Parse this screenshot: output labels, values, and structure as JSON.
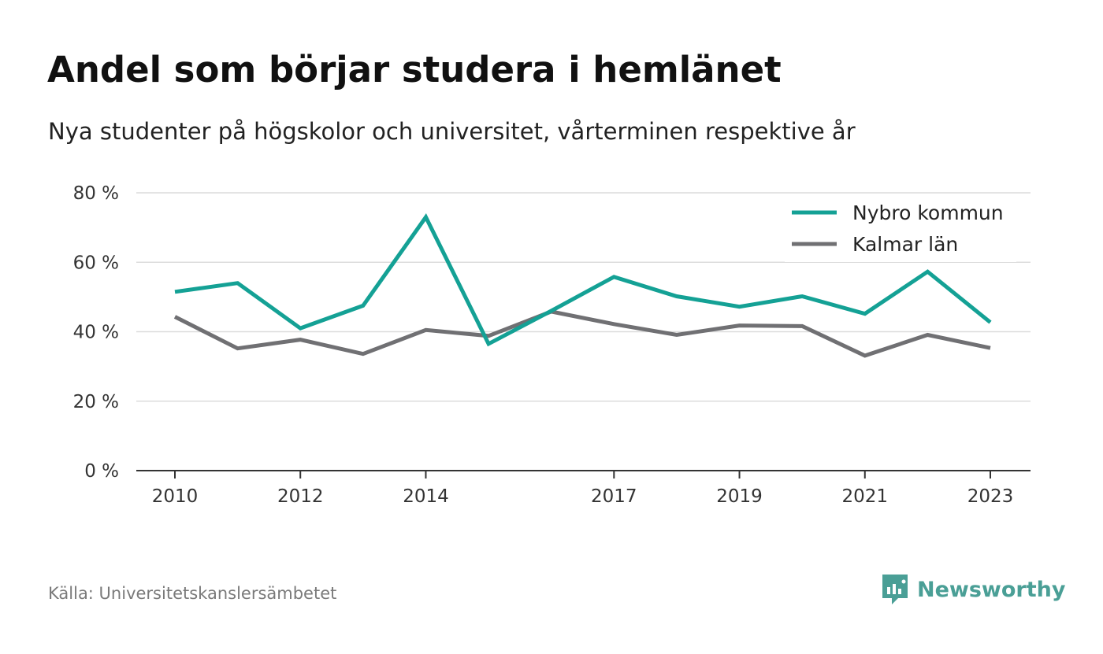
{
  "chart_data": {
    "type": "line",
    "title": "Andel som börjar studera i hemlänet",
    "subtitle": "Nya studenter på högskolor och universitet, vårterminen respektive år",
    "x": [
      2010,
      2011,
      2012,
      2013,
      2014,
      2015,
      2016,
      2017,
      2018,
      2019,
      2020,
      2021,
      2022,
      2023
    ],
    "x_tick_labels": [
      "2010",
      "2012",
      "2014",
      "2017",
      "2019",
      "2021",
      "2023"
    ],
    "x_ticks": [
      2010,
      2012,
      2014,
      2017,
      2019,
      2021,
      2023
    ],
    "y_ticks": [
      0,
      20,
      40,
      60,
      80
    ],
    "y_tick_labels": [
      "0 %",
      "20 %",
      "40 %",
      "60 %",
      "80 %"
    ],
    "ylim": [
      0,
      80
    ],
    "grid": true,
    "legend_position": "top-right",
    "series": [
      {
        "name": "Nybro kommun",
        "color": "#14a195",
        "values": [
          51.5,
          54,
          41,
          47.5,
          73,
          36.5,
          46,
          55.8,
          50.2,
          47.2,
          50.2,
          45.2,
          57.3,
          42.7
        ]
      },
      {
        "name": "Kalmar län",
        "color": "#707073",
        "values": [
          44.3,
          35.2,
          37.7,
          33.6,
          40.5,
          38.8,
          45.8,
          42.2,
          39.1,
          41.8,
          41.6,
          33.1,
          39.1,
          35.3
        ]
      }
    ]
  },
  "footer": {
    "source": "Källa: Universitetskanslersämbetet",
    "brand": "Newsworthy",
    "brand_icon": "newsworthy-logo-icon",
    "brand_color": "#4a9f96"
  }
}
